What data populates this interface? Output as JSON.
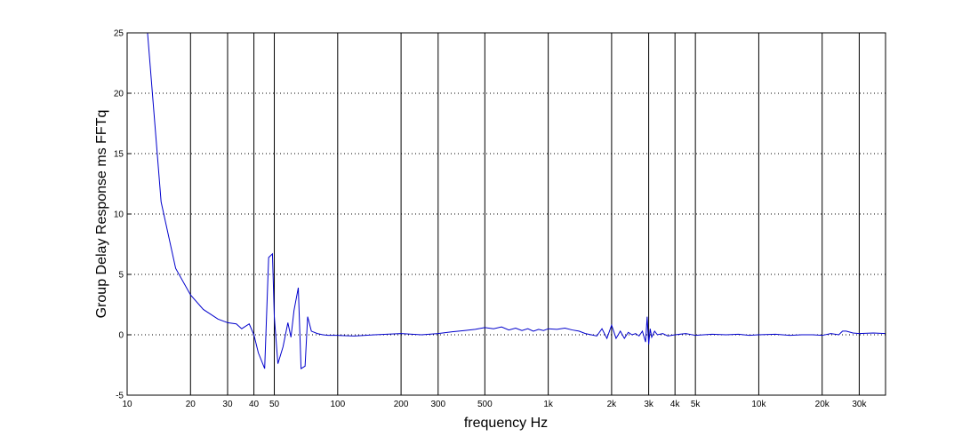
{
  "chart_data": {
    "type": "line",
    "title": "",
    "xlabel": "frequency   Hz",
    "ylabel": "Group Delay Response ms    FFTq",
    "xscale": "log",
    "xlim": [
      10,
      40000
    ],
    "ylim": [
      -5,
      25
    ],
    "y_ticks": [
      -5,
      0,
      5,
      10,
      15,
      20,
      25
    ],
    "y_grid": "dotted",
    "x_grid": "solid",
    "x_ticks": [
      {
        "value": 10,
        "label": "10"
      },
      {
        "value": 20,
        "label": "20"
      },
      {
        "value": 30,
        "label": "30"
      },
      {
        "value": 40,
        "label": "40"
      },
      {
        "value": 50,
        "label": "50"
      },
      {
        "value": 100,
        "label": "100"
      },
      {
        "value": 200,
        "label": "200"
      },
      {
        "value": 300,
        "label": "300"
      },
      {
        "value": 500,
        "label": "500"
      },
      {
        "value": 1000,
        "label": "1k"
      },
      {
        "value": 2000,
        "label": "2k"
      },
      {
        "value": 3000,
        "label": "3k"
      },
      {
        "value": 4000,
        "label": "4k"
      },
      {
        "value": 5000,
        "label": "5k"
      },
      {
        "value": 10000,
        "label": "10k"
      },
      {
        "value": 20000,
        "label": "20k"
      },
      {
        "value": 30000,
        "label": "30k"
      }
    ],
    "series": [
      {
        "color": "#0000cc",
        "x": [
          12.5,
          14.5,
          17,
          20,
          23,
          27,
          30,
          33,
          35,
          38,
          40,
          42,
          45,
          47,
          49,
          50,
          52,
          55,
          58,
          60,
          62,
          65,
          67,
          70,
          72,
          75,
          80,
          85,
          90,
          100,
          120,
          150,
          200,
          250,
          300,
          350,
          400,
          450,
          500,
          550,
          600,
          650,
          700,
          750,
          800,
          850,
          900,
          950,
          1000,
          1100,
          1200,
          1300,
          1400,
          1500,
          1600,
          1700,
          1800,
          1900,
          2000,
          2100,
          2200,
          2300,
          2400,
          2500,
          2600,
          2700,
          2800,
          2900,
          2950,
          3000,
          3050,
          3100,
          3200,
          3300,
          3500,
          3700,
          4000,
          4500,
          5000,
          6000,
          7000,
          8000,
          9000,
          10000,
          12000,
          14000,
          16000,
          18000,
          20000,
          22000,
          24000,
          25000,
          26000,
          28000,
          30000,
          35000,
          40000
        ],
        "y": [
          25,
          11,
          5.5,
          3.3,
          2.1,
          1.3,
          1.0,
          0.9,
          0.5,
          0.9,
          0,
          -1.5,
          -2.8,
          6.4,
          6.7,
          1.5,
          -2.4,
          -1.0,
          1.0,
          -0.2,
          2.0,
          3.9,
          -2.8,
          -2.6,
          1.5,
          0.3,
          0.1,
          0.0,
          -0.05,
          -0.05,
          -0.1,
          0.0,
          0.1,
          0.0,
          0.1,
          0.25,
          0.35,
          0.45,
          0.6,
          0.5,
          0.65,
          0.4,
          0.55,
          0.35,
          0.5,
          0.3,
          0.45,
          0.35,
          0.5,
          0.45,
          0.55,
          0.4,
          0.3,
          0.1,
          0.0,
          -0.1,
          0.5,
          -0.3,
          0.8,
          -0.3,
          0.3,
          -0.3,
          0.2,
          0.0,
          0.1,
          -0.1,
          0.3,
          -0.6,
          1.5,
          -0.8,
          0.5,
          -0.2,
          0.3,
          0.0,
          0.1,
          -0.1,
          0.0,
          0.1,
          -0.05,
          0.05,
          0.0,
          0.05,
          -0.05,
          0.0,
          0.05,
          -0.05,
          0.0,
          0.0,
          -0.05,
          0.1,
          0.0,
          0.3,
          0.3,
          0.15,
          0.1,
          0.15,
          0.1
        ]
      }
    ]
  }
}
